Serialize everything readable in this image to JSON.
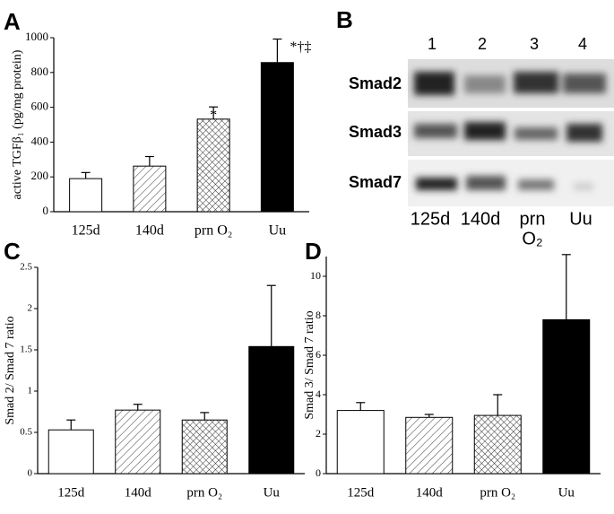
{
  "chart_data": [
    {
      "type": "bar",
      "panel": "A",
      "ylabel": "active TGFβ₁ (pg/mg protein)",
      "categories": [
        "125d",
        "140d",
        "prn O₂",
        "Uu"
      ],
      "values": [
        190,
        262,
        532,
        857
      ],
      "errors": [
        35,
        55,
        70,
        135
      ],
      "annotations": [
        null,
        null,
        "*",
        "*†‡"
      ],
      "fills": [
        "white",
        "hatch",
        "crosshatch",
        "black"
      ],
      "ylim": [
        0,
        1000
      ],
      "yticks": [
        0,
        200,
        400,
        600,
        800,
        1000
      ]
    },
    {
      "type": "bar",
      "panel": "C",
      "ylabel": "Smad 2/ Smad 7 ratio",
      "categories": [
        "125d",
        "140d",
        "prn O₂",
        "Uu"
      ],
      "values": [
        0.53,
        0.77,
        0.65,
        1.54
      ],
      "errors": [
        0.12,
        0.07,
        0.09,
        0.74
      ],
      "fills": [
        "white",
        "hatch",
        "crosshatch",
        "black"
      ],
      "ylim": [
        0,
        2.5
      ],
      "yticks": [
        0,
        0.5,
        1,
        1.5,
        2,
        2.5
      ]
    },
    {
      "type": "bar",
      "panel": "D",
      "ylabel": "Smad 3/ Smad 7 ratio",
      "categories": [
        "125d",
        "140d",
        "prn O₂",
        "Uu"
      ],
      "values": [
        3.2,
        2.85,
        2.95,
        7.8
      ],
      "errors": [
        0.4,
        0.15,
        1.05,
        3.3
      ],
      "fills": [
        "white",
        "hatch",
        "crosshatch",
        "black"
      ],
      "ylim": [
        0,
        11
      ],
      "yticks": [
        0,
        2,
        4,
        6,
        8,
        10
      ]
    }
  ],
  "blot": {
    "panel": "B",
    "lanes": [
      "1",
      "2",
      "3",
      "4"
    ],
    "rows": [
      "Smad2",
      "Smad3",
      "Smad7"
    ],
    "lane_labels": [
      "125d",
      "140d",
      [
        "prn",
        "O₂"
      ],
      "Uu"
    ]
  }
}
